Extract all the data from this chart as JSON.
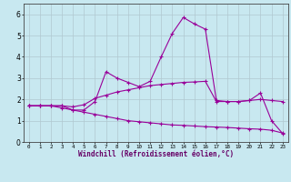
{
  "x": [
    0,
    1,
    2,
    3,
    4,
    5,
    6,
    7,
    8,
    9,
    10,
    11,
    12,
    13,
    14,
    15,
    16,
    17,
    18,
    19,
    20,
    21,
    22,
    23
  ],
  "line1": [
    1.7,
    1.7,
    1.7,
    1.7,
    1.5,
    1.5,
    1.9,
    3.3,
    3.0,
    2.8,
    2.6,
    2.85,
    4.0,
    5.1,
    5.85,
    5.55,
    5.3,
    1.95,
    1.9,
    1.9,
    1.95,
    2.3,
    1.0,
    0.4
  ],
  "line2": [
    1.7,
    1.7,
    1.7,
    1.7,
    1.65,
    1.75,
    2.05,
    2.2,
    2.35,
    2.45,
    2.55,
    2.65,
    2.7,
    2.75,
    2.8,
    2.82,
    2.85,
    1.9,
    1.9,
    1.9,
    1.95,
    2.0,
    1.95,
    1.9
  ],
  "line3": [
    1.7,
    1.7,
    1.7,
    1.6,
    1.5,
    1.4,
    1.3,
    1.2,
    1.1,
    1.0,
    0.95,
    0.9,
    0.85,
    0.8,
    0.78,
    0.75,
    0.72,
    0.7,
    0.68,
    0.65,
    0.62,
    0.6,
    0.55,
    0.42
  ],
  "line_color": "#990099",
  "bg_color": "#c8e8f0",
  "grid_color": "#b0c8d0",
  "xlabel": "Windchill (Refroidissement éolien,°C)",
  "ylim": [
    0,
    6.5
  ],
  "xlim": [
    -0.5,
    23.5
  ],
  "yticks": [
    0,
    1,
    2,
    3,
    4,
    5,
    6
  ],
  "xticks": [
    0,
    1,
    2,
    3,
    4,
    5,
    6,
    7,
    8,
    9,
    10,
    11,
    12,
    13,
    14,
    15,
    16,
    17,
    18,
    19,
    20,
    21,
    22,
    23
  ]
}
